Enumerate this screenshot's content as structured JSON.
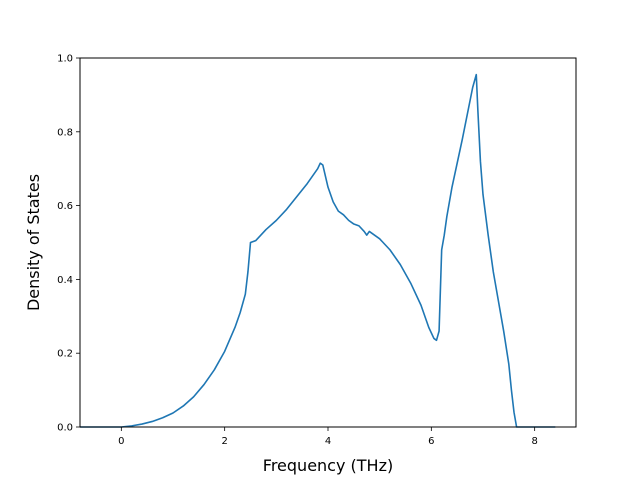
{
  "chart_data": {
    "type": "line",
    "title": "",
    "xlabel": "Frequency (THz)",
    "ylabel": "Density of States",
    "xlim": [
      -0.8,
      8.8
    ],
    "ylim": [
      0.0,
      1.0
    ],
    "grid": false,
    "x_ticks": [
      0,
      2,
      4,
      6,
      8
    ],
    "x_tick_labels": [
      "0",
      "2",
      "4",
      "6",
      "8"
    ],
    "y_ticks": [
      0.0,
      0.2,
      0.4,
      0.6,
      0.8,
      1.0
    ],
    "y_tick_labels": [
      "0.0",
      "0.2",
      "0.4",
      "0.6",
      "0.8",
      "1.0"
    ],
    "series": [
      {
        "color": "#1f77b4",
        "x": [
          -0.8,
          0.0,
          0.2,
          0.4,
          0.6,
          0.8,
          1.0,
          1.2,
          1.4,
          1.6,
          1.8,
          2.0,
          2.2,
          2.3,
          2.4,
          2.45,
          2.5,
          2.6,
          2.8,
          3.0,
          3.2,
          3.4,
          3.6,
          3.8,
          3.85,
          3.9,
          4.0,
          4.1,
          4.2,
          4.3,
          4.4,
          4.5,
          4.6,
          4.7,
          4.75,
          4.8,
          5.0,
          5.2,
          5.4,
          5.6,
          5.8,
          5.95,
          6.05,
          6.1,
          6.15,
          6.2,
          6.25,
          6.3,
          6.4,
          6.6,
          6.8,
          6.87,
          6.9,
          6.95,
          7.0,
          7.1,
          7.2,
          7.3,
          7.4,
          7.5,
          7.55,
          7.6,
          7.65,
          7.7,
          8.0,
          8.4
        ],
        "y": [
          0.0,
          0.0,
          0.003,
          0.008,
          0.015,
          0.025,
          0.038,
          0.057,
          0.082,
          0.115,
          0.155,
          0.205,
          0.27,
          0.31,
          0.36,
          0.42,
          0.5,
          0.505,
          0.535,
          0.56,
          0.59,
          0.625,
          0.66,
          0.7,
          0.715,
          0.71,
          0.65,
          0.61,
          0.585,
          0.575,
          0.56,
          0.55,
          0.545,
          0.53,
          0.52,
          0.53,
          0.51,
          0.48,
          0.44,
          0.39,
          0.33,
          0.27,
          0.24,
          0.235,
          0.26,
          0.48,
          0.52,
          0.57,
          0.65,
          0.78,
          0.92,
          0.955,
          0.86,
          0.72,
          0.63,
          0.52,
          0.42,
          0.34,
          0.26,
          0.17,
          0.1,
          0.04,
          0.0,
          0.0,
          0.0,
          0.0
        ]
      }
    ]
  }
}
